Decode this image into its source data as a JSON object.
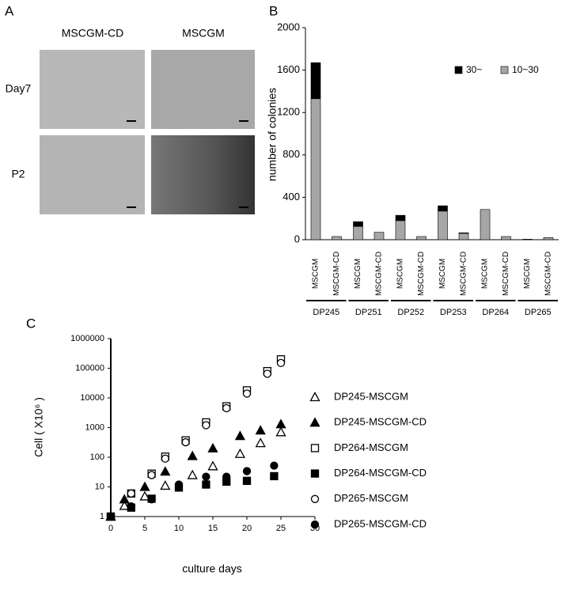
{
  "panel_a": {
    "panel_label": "A",
    "columns": [
      "MSCGM-CD",
      "MSCGM"
    ],
    "rows": [
      "Day7",
      "P2"
    ]
  },
  "chart_data": [
    {
      "type": "bar",
      "stacked": true,
      "panel_label": "B",
      "y_label": "number of colonies",
      "categories": [
        "MSCGM",
        "MSCGM-CD",
        "MSCGM",
        "MSCGM-CD",
        "MSCGM",
        "MSCGM-CD",
        "MSCGM",
        "MSCGM-CD",
        "MSCGM",
        "MSCGM-CD",
        "MSCGM",
        "MSCGM-CD"
      ],
      "groups": [
        "DP245",
        "DP251",
        "DP252",
        "DP253",
        "DP264",
        "DP265"
      ],
      "series": [
        {
          "name": "10~30",
          "color": "#a6a6a6",
          "values": [
            1330,
            30,
            125,
            70,
            180,
            30,
            270,
            60,
            285,
            30,
            5,
            20
          ]
        },
        {
          "name": "30~",
          "color": "#000000",
          "values": [
            340,
            0,
            45,
            0,
            50,
            0,
            50,
            5,
            0,
            0,
            0,
            0
          ]
        }
      ],
      "ylim": [
        0,
        2000
      ],
      "yticks": [
        0,
        400,
        800,
        1200,
        1600,
        2000
      ]
    },
    {
      "type": "scatter",
      "panel_label": "C",
      "x_label": "culture days",
      "y_label": "Cell ( X10⁶ )",
      "log_y": true,
      "xlim": [
        0,
        30
      ],
      "xticks": [
        0,
        5,
        10,
        15,
        20,
        25,
        30
      ],
      "ylim": [
        1,
        1000000
      ],
      "yticks": [
        1,
        10,
        100,
        1000,
        10000,
        100000,
        1000000
      ],
      "series": [
        {
          "name": "DP245-MSCGM",
          "marker": "triangle",
          "filled": false,
          "color": "#000000",
          "x": [
            0,
            2,
            5,
            8,
            12,
            15,
            19,
            22,
            25
          ],
          "values": [
            1,
            2.3,
            4.8,
            11,
            25,
            50,
            130,
            300,
            700
          ]
        },
        {
          "name": "DP245-MSCGM-CD",
          "marker": "triangle",
          "filled": true,
          "color": "#000000",
          "x": [
            0,
            2,
            5,
            8,
            12,
            15,
            19,
            22,
            25
          ],
          "values": [
            1,
            3.8,
            10,
            33,
            110,
            200,
            520,
            800,
            1300
          ]
        },
        {
          "name": "DP264-MSCGM",
          "marker": "square",
          "filled": false,
          "color": "#000000",
          "x": [
            0,
            3,
            6,
            8,
            11,
            14,
            17,
            20,
            23,
            25
          ],
          "values": [
            1,
            6,
            28,
            105,
            370,
            1500,
            5200,
            18000,
            80000,
            200000
          ]
        },
        {
          "name": "DP264-MSCGM-CD",
          "marker": "square",
          "filled": true,
          "color": "#000000",
          "x": [
            0,
            3,
            6,
            10,
            14,
            17,
            20,
            24
          ],
          "values": [
            1,
            2,
            4,
            9.5,
            12,
            15,
            16,
            23
          ]
        },
        {
          "name": "DP265-MSCGM",
          "marker": "circle",
          "filled": false,
          "color": "#000000",
          "x": [
            0,
            3,
            6,
            8,
            11,
            14,
            17,
            20,
            23,
            25
          ],
          "values": [
            1,
            6,
            25,
            90,
            320,
            1200,
            4500,
            14000,
            65000,
            150000
          ]
        },
        {
          "name": "DP265-MSCGM-CD",
          "marker": "circle",
          "filled": true,
          "color": "#000000",
          "x": [
            0,
            3,
            6,
            10,
            14,
            17,
            20,
            24
          ],
          "values": [
            1,
            2.2,
            3.8,
            12,
            22,
            22,
            34,
            52
          ]
        }
      ]
    }
  ]
}
